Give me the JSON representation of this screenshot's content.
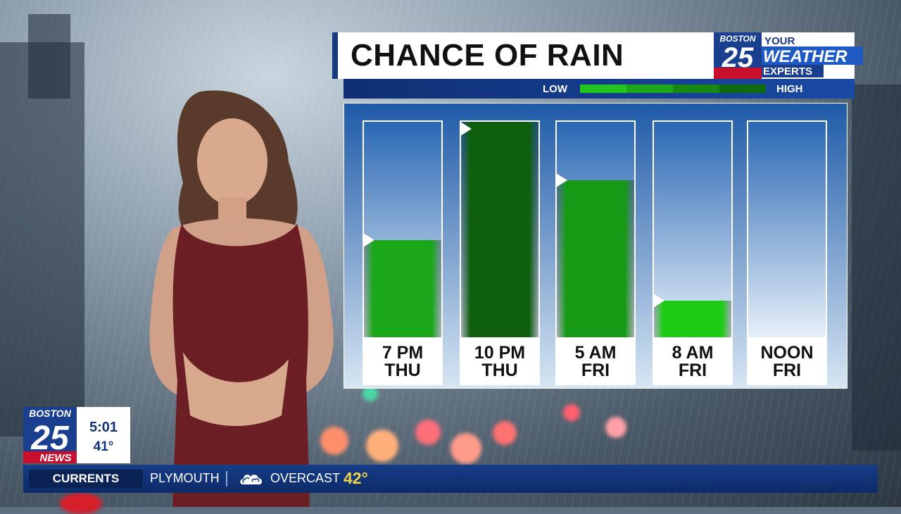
{
  "title": "CHANCE OF RAIN",
  "scale": {
    "low_label": "LOW",
    "high_label": "HIGH",
    "colors": [
      "#23c41e",
      "#1ea71b",
      "#178816",
      "#0f6b10"
    ]
  },
  "chart_data": {
    "type": "bar",
    "categories": [
      "7 PM THU",
      "10 PM THU",
      "5 AM FRI",
      "8 AM FRI",
      "NOON FRI"
    ],
    "values": [
      45,
      100,
      73,
      17,
      0
    ],
    "ylim": [
      0,
      100
    ],
    "bars": [
      {
        "line1": "7 PM",
        "line2": "THU",
        "value": 45,
        "color": "#1aa81a"
      },
      {
        "line1": "10 PM",
        "line2": "THU",
        "value": 100,
        "color": "#0d5f0d"
      },
      {
        "line1": "5 AM",
        "line2": "FRI",
        "value": 73,
        "color": "#169a16"
      },
      {
        "line1": "8 AM",
        "line2": "FRI",
        "value": 17,
        "color": "#1fcc15"
      },
      {
        "line1": "NOON",
        "line2": "FRI",
        "value": 0,
        "color": "#1fcc15"
      }
    ]
  },
  "logo": {
    "station": "BOSTON",
    "number": "25",
    "tagline_1": "YOUR",
    "tagline_2": "WEATHER",
    "tagline_3": "EXPERTS",
    "news_label": "NEWS"
  },
  "clock": {
    "time": "5:01",
    "temp": "41°"
  },
  "ticker": {
    "tab_label": "CURRENTS",
    "location": "PLYMOUTH",
    "condition_icon": "overcast-cloud-icon",
    "condition": "OVERCAST",
    "temp": "42°"
  },
  "colors": {
    "brand_blue": "#17397e",
    "brand_red": "#c8102e",
    "accent_yellow": "#f1d24a"
  }
}
